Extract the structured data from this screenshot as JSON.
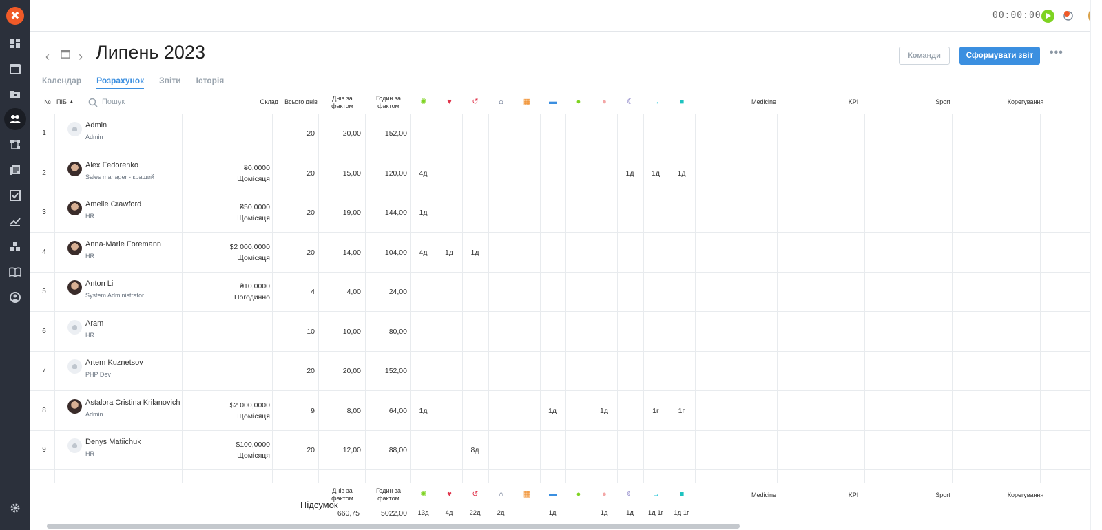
{
  "sidebar": {
    "logo": "✖",
    "items": [
      "dashboard-icon",
      "calendar-icon",
      "folder-user-icon",
      "people-icon",
      "workflow-icon",
      "documents-icon",
      "tasks-icon",
      "analytics-icon",
      "boxes-icon",
      "book-icon",
      "profile-icon",
      "settings-icon"
    ]
  },
  "topbar": {
    "timer": "00:00:00"
  },
  "header": {
    "title": "Липень 2023",
    "teams_button": "Команди",
    "report_button": "Сформувати звіт",
    "more": "•••"
  },
  "tabs": [
    "Календар",
    "Розрахунок",
    "Звіти",
    "Історія"
  ],
  "table": {
    "headers": {
      "num": "№",
      "name": "ПІБ",
      "sort_arrow": "▲",
      "search_placeholder": "Пошук",
      "salary": "Оклад",
      "total_days": "Всього днів",
      "days_fact": "Днів за фактом",
      "hours_fact": "Годин за фактом",
      "medicine": "Medicine",
      "kpi": "KPI",
      "sport": "Sport",
      "correction": "Корегування"
    },
    "absence_icons": [
      {
        "name": "vacation-icon",
        "color": "#7ed321"
      },
      {
        "name": "sick-heart-icon",
        "color": "#e0344b"
      },
      {
        "name": "day-off-icon",
        "color": "#e0344b"
      },
      {
        "name": "remote-home-icon",
        "color": "#4a5a78"
      },
      {
        "name": "calendar-day-icon",
        "color": "#f08a24"
      },
      {
        "name": "business-trip-icon",
        "color": "#3b8fe0"
      },
      {
        "name": "overtime-clock-icon",
        "color": "#7ed321"
      },
      {
        "name": "personal-icon",
        "color": "#f3a6a6"
      },
      {
        "name": "night-moon-icon",
        "color": "#5a4fb0"
      },
      {
        "name": "arrow-right-icon",
        "color": "#1ec3d6"
      },
      {
        "name": "square-icon",
        "color": "#1ec3c0"
      }
    ],
    "rows": [
      {
        "n": "1",
        "name": "Admin",
        "role": "Admin",
        "photo": false,
        "salary": "",
        "period": "",
        "total": "20",
        "days": "20,00",
        "hours": "152,00",
        "abs": [
          "",
          "",
          "",
          "",
          "",
          "",
          "",
          "",
          "",
          "",
          ""
        ]
      },
      {
        "n": "2",
        "name": "Alex Fedorenko",
        "role": "Sales manager - кращий",
        "photo": true,
        "salary": "₴0,0000",
        "period": "Щомісяця",
        "total": "20",
        "days": "15,00",
        "hours": "120,00",
        "abs": [
          "4д",
          "",
          "",
          "",
          "",
          "",
          "",
          "",
          "1д",
          "1д",
          "1д"
        ]
      },
      {
        "n": "3",
        "name": "Amelie Crawford",
        "role": "HR",
        "photo": true,
        "salary": "₴50,0000",
        "period": "Щомісяця",
        "total": "20",
        "days": "19,00",
        "hours": "144,00",
        "abs": [
          "1д",
          "",
          "",
          "",
          "",
          "",
          "",
          "",
          "",
          "",
          ""
        ]
      },
      {
        "n": "4",
        "name": "Anna-Marie Foremann",
        "role": "HR",
        "photo": true,
        "salary": "$2 000,0000",
        "period": "Щомісяця",
        "total": "20",
        "days": "14,00",
        "hours": "104,00",
        "abs": [
          "4д",
          "1д",
          "1д",
          "",
          "",
          "",
          "",
          "",
          "",
          "",
          ""
        ]
      },
      {
        "n": "5",
        "name": "Anton Li",
        "role": "System Administrator",
        "photo": true,
        "salary": "₴10,0000",
        "period": "Погодинно",
        "total": "4",
        "days": "4,00",
        "hours": "24,00",
        "abs": [
          "",
          "",
          "",
          "",
          "",
          "",
          "",
          "",
          "",
          "",
          ""
        ]
      },
      {
        "n": "6",
        "name": "Aram",
        "role": "HR",
        "photo": false,
        "salary": "",
        "period": "",
        "total": "10",
        "days": "10,00",
        "hours": "80,00",
        "abs": [
          "",
          "",
          "",
          "",
          "",
          "",
          "",
          "",
          "",
          "",
          ""
        ]
      },
      {
        "n": "7",
        "name": "Artem Kuznetsov",
        "role": "PHP Dev",
        "photo": false,
        "salary": "",
        "period": "",
        "total": "20",
        "days": "20,00",
        "hours": "152,00",
        "abs": [
          "",
          "",
          "",
          "",
          "",
          "",
          "",
          "",
          "",
          "",
          ""
        ]
      },
      {
        "n": "8",
        "name": "Astalora Cristina Krilanovich",
        "role": "Admin",
        "photo": true,
        "salary": "$2 000,0000",
        "period": "Щомісяця",
        "total": "9",
        "days": "8,00",
        "hours": "64,00",
        "abs": [
          "1д",
          "",
          "",
          "",
          "",
          "1д",
          "",
          "1д",
          "",
          "1г",
          "1г"
        ]
      },
      {
        "n": "9",
        "name": "Denys Matiichuk",
        "role": "HR",
        "photo": false,
        "salary": "$100,0000",
        "period": "Щомісяця",
        "total": "20",
        "days": "12,00",
        "hours": "88,00",
        "abs": [
          "",
          "",
          "8д",
          "",
          "",
          "",
          "",
          "",
          "",
          "",
          ""
        ]
      }
    ]
  },
  "summary": {
    "label": "Підсумок",
    "days_fact": "660,75",
    "hours_fact": "5022,00",
    "abs": [
      "13д",
      "4д",
      "22д",
      "2д",
      "",
      "1д",
      "",
      "1д",
      "1д",
      "1д 1г",
      "1д 1г"
    ]
  },
  "colors": {
    "accent": "#3b8fe0",
    "sidebar": "#2b303b",
    "logo": "#f05a28"
  }
}
